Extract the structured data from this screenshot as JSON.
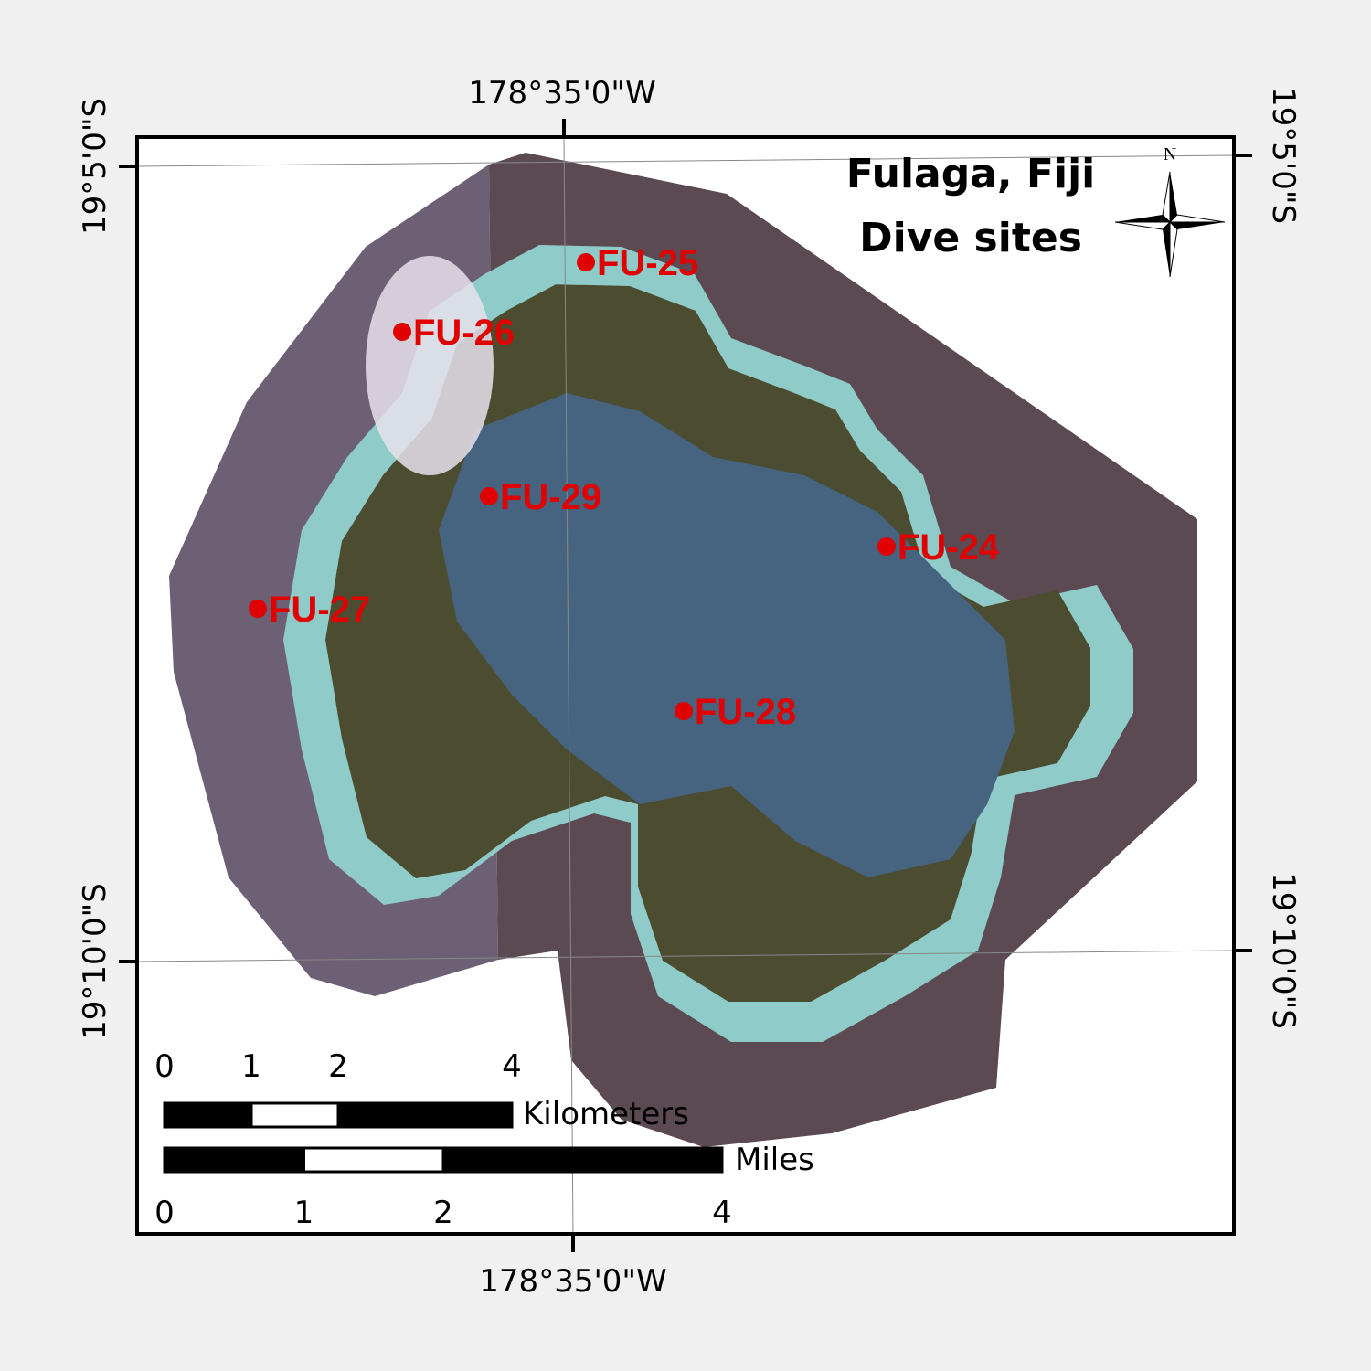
{
  "title": [
    "Fulaga, Fiji",
    "Dive sites"
  ],
  "north_label": "N",
  "graticule": {
    "top": "178°35'0\"W",
    "bottom": "178°35'0\"W",
    "left_north": "19°5'0\"S",
    "left_south": "19°10'0\"S",
    "right_north": "19°5'0\"S",
    "right_south": "19°10'0\"S"
  },
  "dive_sites": [
    {
      "label": "FU-25"
    },
    {
      "label": "FU-26"
    },
    {
      "label": "FU-29"
    },
    {
      "label": "FU-24"
    },
    {
      "label": "FU-27"
    },
    {
      "label": "FU-28"
    }
  ],
  "scale_bars": [
    {
      "unit": "Kilometers",
      "ticks": [
        0,
        1,
        2,
        4
      ]
    },
    {
      "unit": "Miles",
      "ticks": [
        0,
        1,
        2,
        4
      ]
    }
  ]
}
